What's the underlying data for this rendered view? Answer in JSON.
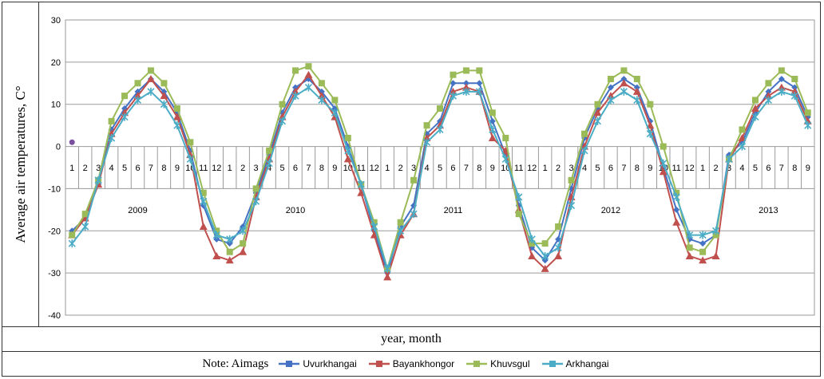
{
  "chart_data": {
    "type": "line",
    "ylabel": "Average air temperatures, C°",
    "xlabel": "year, month",
    "ylim": [
      -40,
      30
    ],
    "yticks": [
      30,
      20,
      10,
      0,
      -10,
      -20,
      -30,
      -40
    ],
    "grid": true,
    "legend_position": "bottom",
    "legend_note": "Note: Aimags",
    "month_labels": [
      "1",
      "2",
      "3",
      "4",
      "5",
      "6",
      "7",
      "8",
      "9",
      "10",
      "11",
      "12",
      "1",
      "2",
      "3",
      "4",
      "5",
      "6",
      "7",
      "8",
      "9",
      "10",
      "11",
      "12",
      "1",
      "2",
      "3",
      "4",
      "5",
      "6",
      "7",
      "8",
      "9",
      "10",
      "11",
      "12",
      "1",
      "2",
      "3",
      "4",
      "5",
      "6",
      "7",
      "8",
      "9",
      "10",
      "11",
      "12",
      "1",
      "2",
      "3",
      "4",
      "5",
      "6",
      "7",
      "8",
      "9"
    ],
    "year_labels": [
      {
        "label": "2009",
        "month_index": 5
      },
      {
        "label": "2010",
        "month_index": 17
      },
      {
        "label": "2011",
        "month_index": 29
      },
      {
        "label": "2012",
        "month_index": 41
      },
      {
        "label": "2013",
        "month_index": 53
      }
    ],
    "series": [
      {
        "name": "Uvurkhangai",
        "color": "#4472C4",
        "marker": "diamond",
        "values": [
          -20,
          -17,
          -9,
          4,
          9,
          13,
          16,
          13,
          8,
          -1,
          -14,
          -22,
          -23,
          -19,
          -11,
          -2,
          8,
          14,
          16,
          13,
          9,
          0,
          -9,
          -20,
          -30,
          -19,
          -14,
          3,
          6,
          15,
          15,
          15,
          6,
          -2,
          -14,
          -24,
          -27,
          -22,
          -10,
          2,
          9,
          14,
          16,
          14,
          6,
          -5,
          -15,
          -22,
          -23,
          -21,
          -2,
          1,
          8,
          13,
          16,
          14,
          7
        ]
      },
      {
        "name": "Bayankhongor",
        "color": "#C0504D",
        "marker": "triangle",
        "values": [
          -21,
          -17,
          -9,
          3,
          8,
          12,
          16,
          12,
          7,
          -2,
          -19,
          -26,
          -27,
          -25,
          -12,
          -3,
          7,
          13,
          17,
          12,
          7,
          -3,
          -11,
          -21,
          -31,
          -21,
          -16,
          2,
          5,
          13,
          14,
          13,
          2,
          -1,
          -15,
          -26,
          -29,
          -26,
          -12,
          0,
          8,
          12,
          15,
          13,
          5,
          -6,
          -18,
          -26,
          -27,
          -26,
          -3,
          2,
          9,
          12,
          14,
          13,
          6
        ]
      },
      {
        "name": "Khuvsgul",
        "color": "#9BBB59",
        "marker": "square",
        "values": [
          -21,
          -16,
          -8,
          6,
          12,
          15,
          18,
          15,
          9,
          1,
          -11,
          -20,
          -25,
          -23,
          -10,
          -1,
          10,
          18,
          19,
          15,
          11,
          2,
          -9,
          -18,
          -29,
          -18,
          -8,
          5,
          9,
          17,
          18,
          18,
          8,
          2,
          -16,
          -23,
          -23,
          -19,
          -8,
          3,
          10,
          16,
          18,
          16,
          10,
          0,
          -11,
          -24,
          -25,
          -21,
          -3,
          4,
          11,
          15,
          18,
          16,
          8
        ]
      },
      {
        "name": "Arkhangai",
        "color": "#4BACC6",
        "marker": "star",
        "values": [
          -23,
          -19,
          -8,
          2,
          7,
          11,
          13,
          10,
          5,
          -3,
          -13,
          -21,
          -22,
          -20,
          -13,
          -4,
          6,
          12,
          14,
          11,
          8,
          -1,
          -9,
          -19,
          -29,
          -20,
          -16,
          1,
          4,
          12,
          13,
          13,
          4,
          -3,
          -12,
          -22,
          -26,
          -24,
          -14,
          -1,
          6,
          11,
          13,
          11,
          3,
          -4,
          -12,
          -21,
          -21,
          -20,
          -3,
          0,
          7,
          11,
          13,
          12,
          5
        ]
      }
    ],
    "stray_point": {
      "x": 1,
      "y": 1,
      "color": "#7B4FA0"
    }
  }
}
